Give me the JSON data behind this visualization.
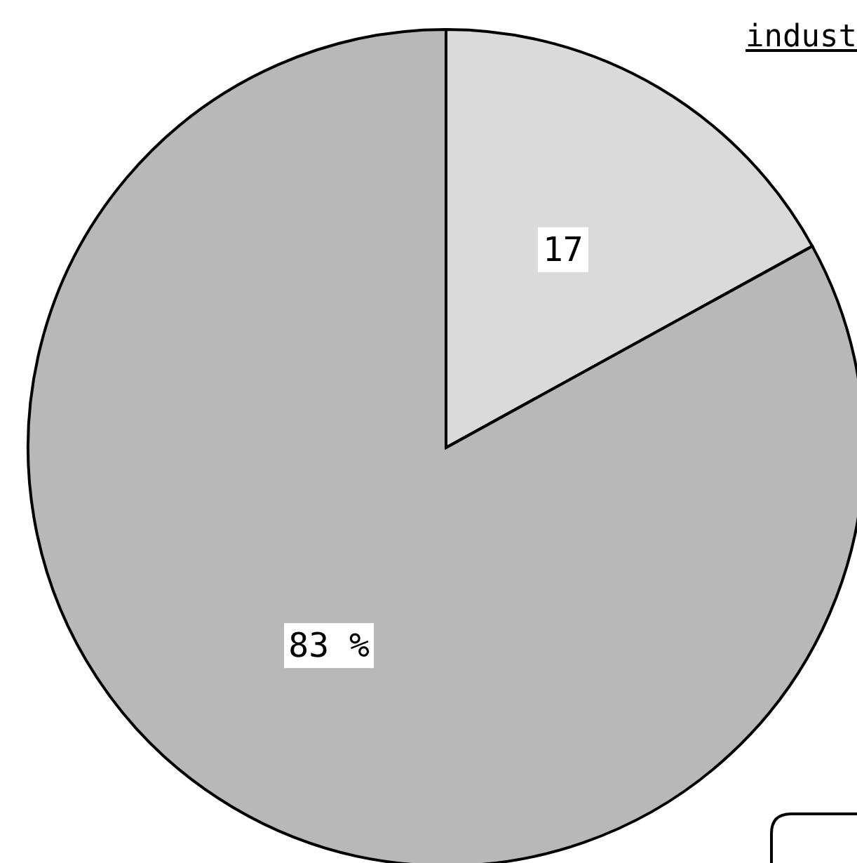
{
  "chart_data": {
    "type": "pie",
    "categories": [
      null,
      null
    ],
    "values": [
      17,
      83
    ],
    "colors": [
      "#dadada",
      "#b8b8b8"
    ],
    "value_labels": [
      "17",
      "83 %"
    ],
    "annotations": [
      "indust"
    ]
  }
}
